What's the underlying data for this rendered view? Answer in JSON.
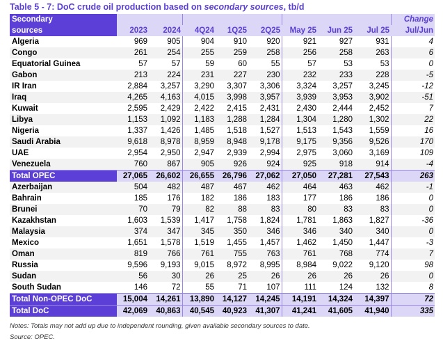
{
  "title": {
    "prefix": "Table 5 - 7: DoC crude oil production based on ",
    "italic": "secondary sources",
    "suffix": ", tb/d"
  },
  "header": {
    "label1": "Secondary",
    "label2": "sources",
    "change1": "Change",
    "columns": [
      "2023",
      "2024",
      "4Q24",
      "1Q25",
      "2Q25",
      "May 25",
      "Jun 25",
      "Jul 25",
      "Jul/Jun"
    ]
  },
  "opec": [
    [
      "Algeria",
      "969",
      "905",
      "904",
      "910",
      "920",
      "921",
      "927",
      "931",
      "4"
    ],
    [
      "Congo",
      "261",
      "254",
      "255",
      "259",
      "258",
      "256",
      "258",
      "263",
      "6"
    ],
    [
      "Equatorial Guinea",
      "57",
      "57",
      "59",
      "60",
      "55",
      "57",
      "53",
      "53",
      "0"
    ],
    [
      "Gabon",
      "213",
      "224",
      "231",
      "227",
      "230",
      "232",
      "233",
      "228",
      "-5"
    ],
    [
      "IR Iran",
      "2,884",
      "3,257",
      "3,290",
      "3,307",
      "3,306",
      "3,324",
      "3,257",
      "3,245",
      "-12"
    ],
    [
      "Iraq",
      "4,265",
      "4,163",
      "4,015",
      "3,998",
      "3,957",
      "3,939",
      "3,953",
      "3,902",
      "-51"
    ],
    [
      "Kuwait",
      "2,595",
      "2,429",
      "2,422",
      "2,415",
      "2,431",
      "2,430",
      "2,444",
      "2,452",
      "7"
    ],
    [
      "Libya",
      "1,153",
      "1,092",
      "1,183",
      "1,288",
      "1,284",
      "1,304",
      "1,280",
      "1,302",
      "22"
    ],
    [
      "Nigeria",
      "1,337",
      "1,426",
      "1,485",
      "1,518",
      "1,527",
      "1,513",
      "1,543",
      "1,559",
      "16"
    ],
    [
      "Saudi Arabia",
      "9,618",
      "8,978",
      "8,959",
      "8,948",
      "9,178",
      "9,175",
      "9,356",
      "9,526",
      "170"
    ],
    [
      "UAE",
      "2,954",
      "2,950",
      "2,947",
      "2,939",
      "2,994",
      "2,975",
      "3,060",
      "3,169",
      "109"
    ],
    [
      "Venezuela",
      "760",
      "867",
      "905",
      "926",
      "924",
      "925",
      "918",
      "914",
      "-4"
    ]
  ],
  "total_opec": [
    "Total  OPEC",
    "27,065",
    "26,602",
    "26,655",
    "26,796",
    "27,062",
    "27,050",
    "27,281",
    "27,543",
    "263"
  ],
  "non_opec": [
    [
      "Azerbaijan",
      "504",
      "482",
      "487",
      "467",
      "462",
      "464",
      "463",
      "462",
      "-1"
    ],
    [
      "Bahrain",
      "185",
      "176",
      "182",
      "186",
      "183",
      "177",
      "186",
      "186",
      "0"
    ],
    [
      "Brunei",
      "70",
      "79",
      "82",
      "88",
      "83",
      "80",
      "83",
      "83",
      "0"
    ],
    [
      "Kazakhstan",
      "1,603",
      "1,539",
      "1,417",
      "1,758",
      "1,824",
      "1,781",
      "1,863",
      "1,827",
      "-36"
    ],
    [
      "Malaysia",
      "374",
      "347",
      "345",
      "350",
      "346",
      "346",
      "340",
      "340",
      "0"
    ],
    [
      "Mexico",
      "1,651",
      "1,578",
      "1,519",
      "1,455",
      "1,457",
      "1,462",
      "1,450",
      "1,447",
      "-3"
    ],
    [
      "Oman",
      "819",
      "766",
      "761",
      "755",
      "763",
      "761",
      "768",
      "774",
      "7"
    ],
    [
      "Russia",
      "9,596",
      "9,193",
      "9,015",
      "8,972",
      "8,995",
      "8,984",
      "9,022",
      "9,120",
      "98"
    ],
    [
      "Sudan",
      "56",
      "30",
      "26",
      "25",
      "26",
      "26",
      "26",
      "26",
      "0"
    ],
    [
      "South Sudan",
      "146",
      "72",
      "55",
      "71",
      "107",
      "111",
      "124",
      "132",
      "8"
    ]
  ],
  "total_non_opec": [
    "Total Non-OPEC DoC",
    "15,004",
    "14,261",
    "13,890",
    "14,127",
    "14,245",
    "14,191",
    "14,324",
    "14,397",
    "72"
  ],
  "total_doc": [
    "Total DoC",
    "42,069",
    "40,863",
    "40,545",
    "40,923",
    "41,307",
    "41,241",
    "41,605",
    "41,940",
    "335"
  ],
  "notes": "Notes: Totals may not add up due to independent rounding, given available secondary sources to date.",
  "source": "Source: OPEC."
}
